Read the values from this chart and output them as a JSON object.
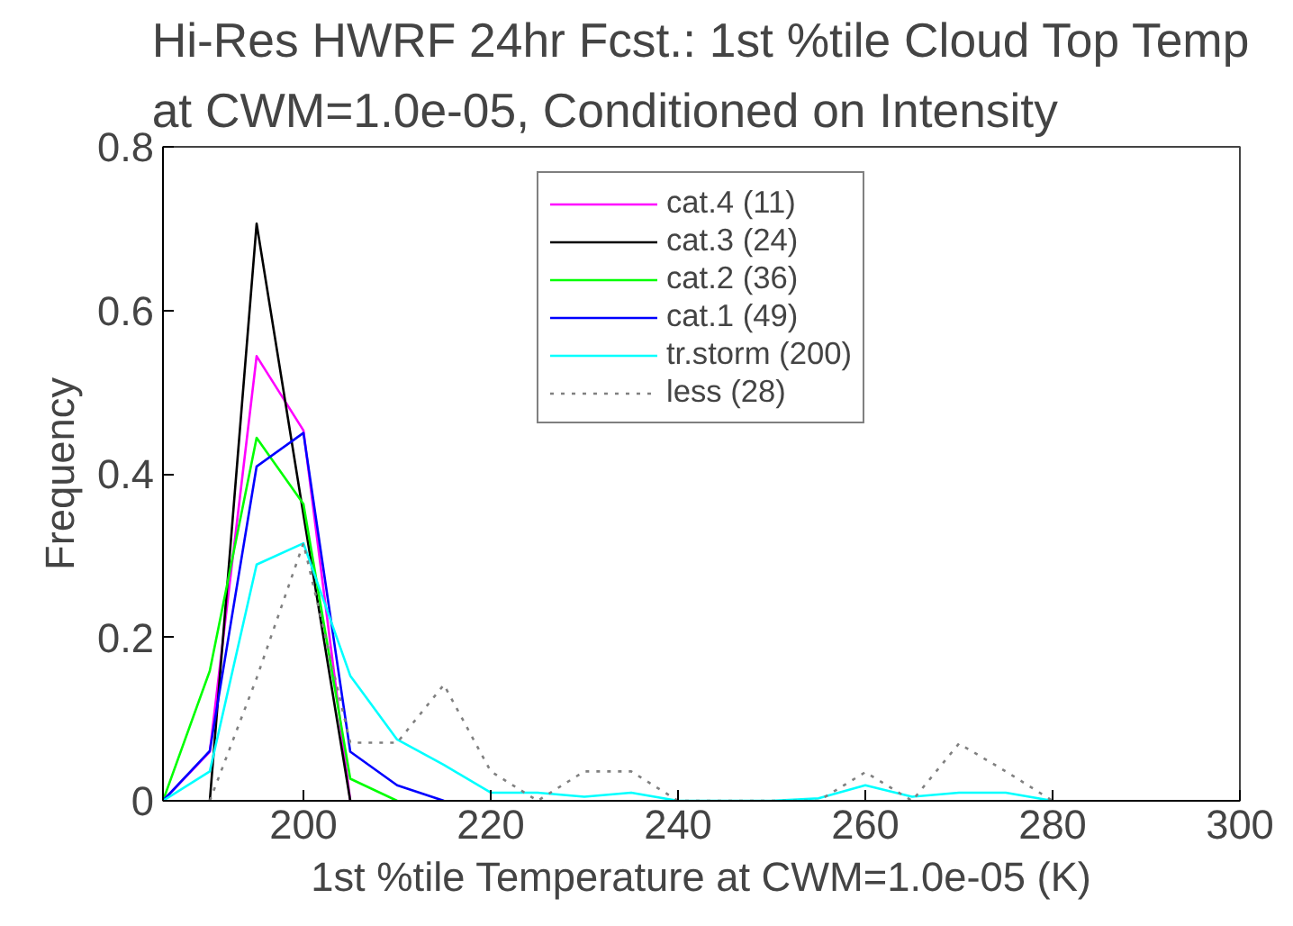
{
  "chart_data": {
    "type": "line",
    "title": "Hi-Res HWRF 24hr Fcst.: 1st %tile Cloud Top Temp\nat CWM=1.0e-05, Conditioned on Intensity",
    "xlabel": "1st %tile Temperature at CWM=1.0e-05 (K)",
    "ylabel": "Frequency",
    "x": [
      185,
      190,
      195,
      200,
      205,
      210,
      215,
      220,
      225,
      230,
      235,
      240,
      245,
      250,
      255,
      260,
      265,
      270,
      275,
      280
    ],
    "xlim": [
      185,
      300
    ],
    "xticks": [
      200,
      220,
      240,
      260,
      280,
      300
    ],
    "ylim": [
      0,
      0.8
    ],
    "yticks": [
      0,
      0.2,
      0.4,
      0.6,
      0.8
    ],
    "grid": false,
    "legend": "top",
    "marker": "none",
    "series": [
      {
        "name": "cat.4 (11)",
        "color": "#ff00ff",
        "line_style": "solid",
        "values": [
          0,
          0.06,
          0.544,
          0.453,
          0,
          null,
          null,
          null,
          null,
          null,
          null,
          null,
          null,
          null,
          null,
          null,
          null,
          null,
          null,
          null
        ]
      },
      {
        "name": "cat.3 (24)",
        "color": "#000000",
        "line_style": "solid",
        "values": [
          null,
          0,
          0.706,
          0.35,
          0,
          null,
          null,
          null,
          null,
          null,
          null,
          null,
          null,
          null,
          null,
          null,
          null,
          null,
          null,
          null
        ]
      },
      {
        "name": "cat.2 (36)",
        "color": "#00ff00",
        "line_style": "solid",
        "values": [
          0,
          0.159,
          0.444,
          0.363,
          0.027,
          0,
          null,
          null,
          null,
          null,
          null,
          null,
          null,
          null,
          null,
          null,
          null,
          null,
          null,
          null
        ]
      },
      {
        "name": "cat.1 (49)",
        "color": "#0000ff",
        "line_style": "solid",
        "values": [
          0,
          0.061,
          0.409,
          0.45,
          0.06,
          0.019,
          0,
          null,
          null,
          null,
          null,
          null,
          null,
          null,
          null,
          null,
          null,
          null,
          null,
          null
        ]
      },
      {
        "name": "tr.storm (200)",
        "color": "#00ffff",
        "line_style": "solid",
        "values": [
          0,
          0.036,
          0.289,
          0.315,
          0.153,
          0.075,
          0.044,
          0.01,
          0.01,
          0.005,
          0.01,
          0,
          0,
          0,
          0.003,
          0.019,
          0.005,
          0.01,
          0.01,
          0
        ]
      },
      {
        "name": "less (28)",
        "color": "#808080",
        "line_style": "dotted",
        "values": [
          null,
          0,
          0.15,
          0.315,
          0.071,
          0.071,
          0.142,
          0.036,
          0,
          0.036,
          0.036,
          0,
          0,
          0,
          0,
          0.035,
          0,
          0.07,
          0.036,
          0
        ]
      }
    ]
  }
}
